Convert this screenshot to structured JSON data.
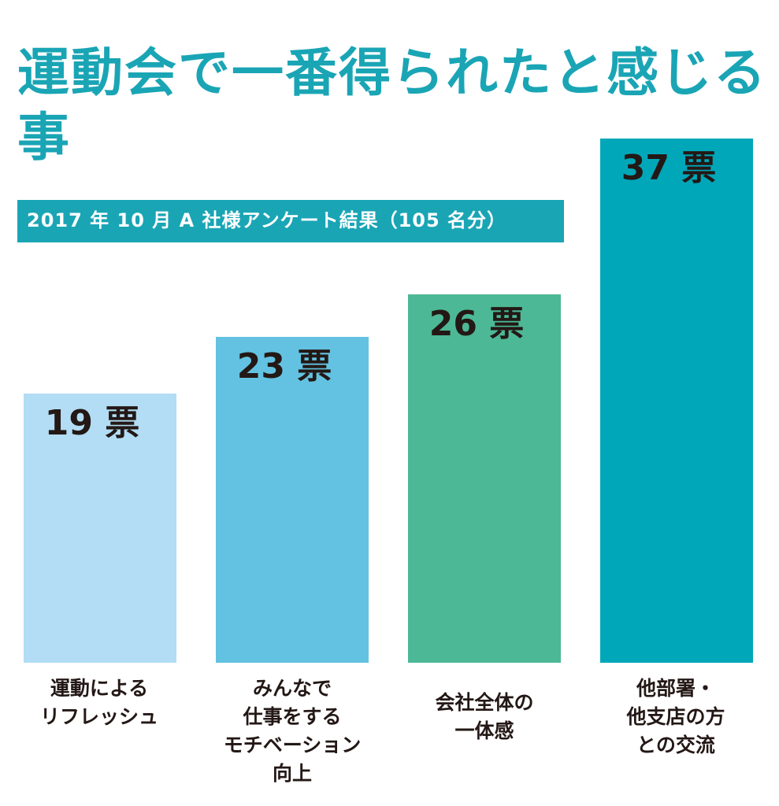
{
  "title": "運動会で一番得られたと感じる事",
  "subtitle": "2017 年 10 月 A 社様アンケート結果（105 名分）",
  "colors": {
    "accent": "#1aa5b5",
    "bar_1": "#b2ddf4",
    "bar_2": "#63c2e1",
    "bar_3": "#4cb896",
    "bar_4": "#00a7b9",
    "value_text": "#231815"
  },
  "chart_data": {
    "type": "bar",
    "categories": [
      "運動による\nリフレッシュ",
      "みんなで\n仕事をする\nモチベーション\n向上",
      "会社全体の\n一体感",
      "他部署・\n他支店の方\nとの交流"
    ],
    "values": [
      19,
      23,
      26,
      37
    ],
    "data_labels": [
      "19 票",
      "23 票",
      "26 票",
      "37 票"
    ],
    "title": "運動会で一番得られたと感じる事",
    "subtitle": "2017 年 10 月 A 社様アンケート結果（105 名分）",
    "unit": "票",
    "grid": false,
    "legend": "none"
  }
}
